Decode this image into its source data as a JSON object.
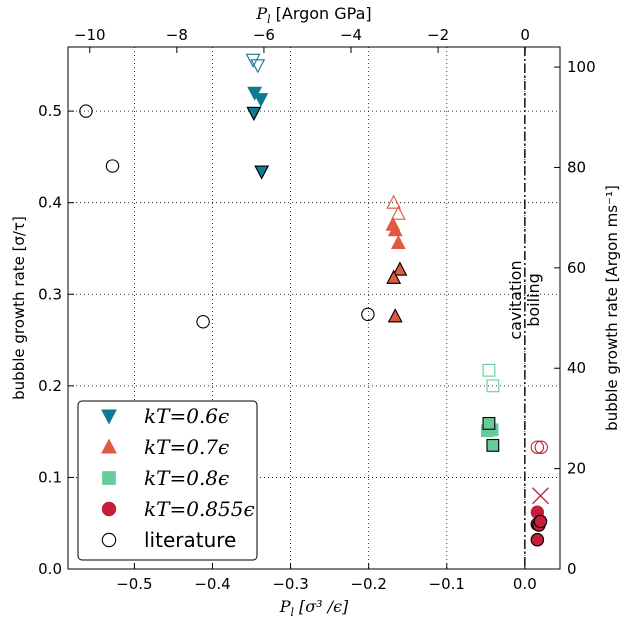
{
  "chart_data": {
    "type": "scatter",
    "xlabel_main": "P",
    "xlabel_sub": "l",
    "xlabel_units": "[σ³ /ϵ]",
    "ylabel_left": "bubble growth rate  [σ/τ]",
    "ylabel_right": "bubble growth rate  [Argon ms⁻¹]",
    "top_label_main": "P",
    "top_label_sub": "l",
    "top_label_units": "[Argon GPa]",
    "xlim": [
      -0.585,
      0.045
    ],
    "ylim": [
      0,
      0.57
    ],
    "top_xlim": [
      -10.5,
      0.8
    ],
    "right_ylim": [
      0,
      104
    ],
    "xticks": [
      -0.5,
      -0.4,
      -0.3,
      -0.2,
      -0.1,
      0.0
    ],
    "xtick_labels": [
      "−0.5",
      "−0.4",
      "−0.3",
      "−0.2",
      "−0.1",
      "0.0"
    ],
    "yticks": [
      0.0,
      0.1,
      0.2,
      0.3,
      0.4,
      0.5
    ],
    "ytick_labels": [
      "0.0",
      "0.1",
      "0.2",
      "0.3",
      "0.4",
      "0.5"
    ],
    "top_ticks": [
      -10,
      -8,
      -6,
      -4,
      -2,
      0
    ],
    "top_tick_labels": [
      "−10",
      "−8",
      "−6",
      "−4",
      "−2",
      "0"
    ],
    "right_ticks": [
      0,
      20,
      40,
      60,
      80,
      100
    ],
    "right_tick_labels": [
      "0",
      "20",
      "40",
      "60",
      "80",
      "100"
    ],
    "grid": true,
    "vline": {
      "x": 0.0,
      "label_left": "cavitation",
      "label_right": "boiling"
    },
    "legend_position": "lower-left",
    "series": [
      {
        "name": "kT=0.6ϵ",
        "color": "#0e7b91",
        "marker": "triangle-down",
        "filled": [
          [
            -0.346,
            0.52
          ],
          [
            -0.338,
            0.513
          ],
          [
            -0.347,
            0.498
          ],
          [
            -0.337,
            0.434
          ]
        ],
        "open": [
          [
            -0.348,
            0.556
          ],
          [
            -0.342,
            0.55
          ]
        ]
      },
      {
        "name": "kT=0.7ϵ",
        "color": "#e05a40",
        "marker": "triangle-up",
        "filled": [
          [
            -0.169,
            0.376
          ],
          [
            -0.166,
            0.37
          ],
          [
            -0.162,
            0.356
          ],
          [
            -0.16,
            0.327
          ],
          [
            -0.168,
            0.318
          ],
          [
            -0.166,
            0.276
          ]
        ],
        "open": [
          [
            -0.168,
            0.4
          ],
          [
            -0.162,
            0.388
          ]
        ]
      },
      {
        "name": "kT=0.8ϵ",
        "color": "#66cc99",
        "marker": "square",
        "filled": [
          [
            -0.046,
            0.159
          ],
          [
            -0.042,
            0.152
          ],
          [
            -0.048,
            0.151
          ],
          [
            -0.041,
            0.135
          ]
        ],
        "open": [
          [
            -0.046,
            0.217
          ],
          [
            -0.041,
            0.2
          ]
        ]
      },
      {
        "name": "kT=0.855ϵ",
        "color": "#c41e3a",
        "marker": "circle",
        "filled": [
          [
            0.016,
            0.062
          ],
          [
            0.02,
            0.052
          ],
          [
            0.016,
            0.049
          ],
          [
            0.018,
            0.048
          ],
          [
            0.016,
            0.032
          ]
        ],
        "open": [
          [
            0.016,
            0.133
          ],
          [
            0.021,
            0.133
          ]
        ],
        "cross": [
          [
            0.02,
            0.08
          ]
        ]
      },
      {
        "name": "literature",
        "color": "#000000",
        "marker": "open-circle",
        "points": [
          [
            -0.562,
            0.5
          ],
          [
            -0.528,
            0.44
          ],
          [
            -0.412,
            0.27
          ],
          [
            -0.201,
            0.278
          ]
        ]
      }
    ]
  },
  "legend": {
    "items": [
      {
        "math": "kT=0.6ϵ",
        "color": "#0e7b91",
        "marker": "triangle-down"
      },
      {
        "math": "kT=0.7ϵ",
        "color": "#e05a40",
        "marker": "triangle-up"
      },
      {
        "math": "kT=0.8ϵ",
        "color": "#66cc99",
        "marker": "square"
      },
      {
        "math": "kT=0.855ϵ",
        "color": "#c41e3a",
        "marker": "circle"
      },
      {
        "text": "literature",
        "color": "#000000",
        "marker": "open-circle"
      }
    ]
  }
}
